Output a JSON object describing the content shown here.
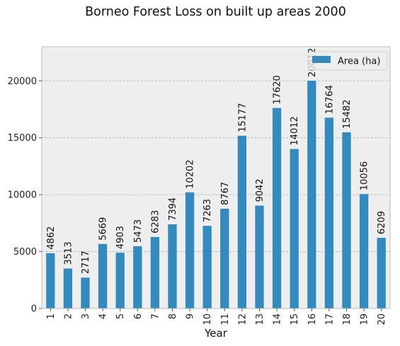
{
  "chart_data": {
    "type": "bar",
    "title": "Borneo Forest Loss on built up areas 2000",
    "xlabel": "Year",
    "ylabel": "",
    "categories": [
      "1",
      "2",
      "3",
      "4",
      "5",
      "6",
      "7",
      "8",
      "9",
      "10",
      "11",
      "12",
      "13",
      "14",
      "15",
      "16",
      "17",
      "18",
      "19",
      "20"
    ],
    "series": [
      {
        "name": "Area (ha)",
        "values": [
          4862,
          3513,
          2717,
          5669,
          4903,
          5473,
          6283,
          7394,
          10202,
          7263,
          8767,
          15177,
          9042,
          17620,
          14012,
          20012,
          16764,
          15482,
          10056,
          6209
        ]
      }
    ],
    "data_labels": [
      "4862",
      "3513",
      "2717",
      "5669",
      "4903",
      "5473",
      "6283",
      "7394",
      "10202",
      "7263",
      "8767",
      "15177",
      "9042",
      "17620",
      "14012",
      "20012",
      "16764",
      "15482",
      "10056",
      "6209"
    ],
    "yticks": [
      0,
      5000,
      10000,
      15000,
      20000
    ],
    "ylim": [
      0,
      23000
    ],
    "grid": true,
    "legend_position": "top-right",
    "bar_color": "#348abd",
    "plot_background": "#eeeeee",
    "grid_color": "#b2b2b2"
  }
}
